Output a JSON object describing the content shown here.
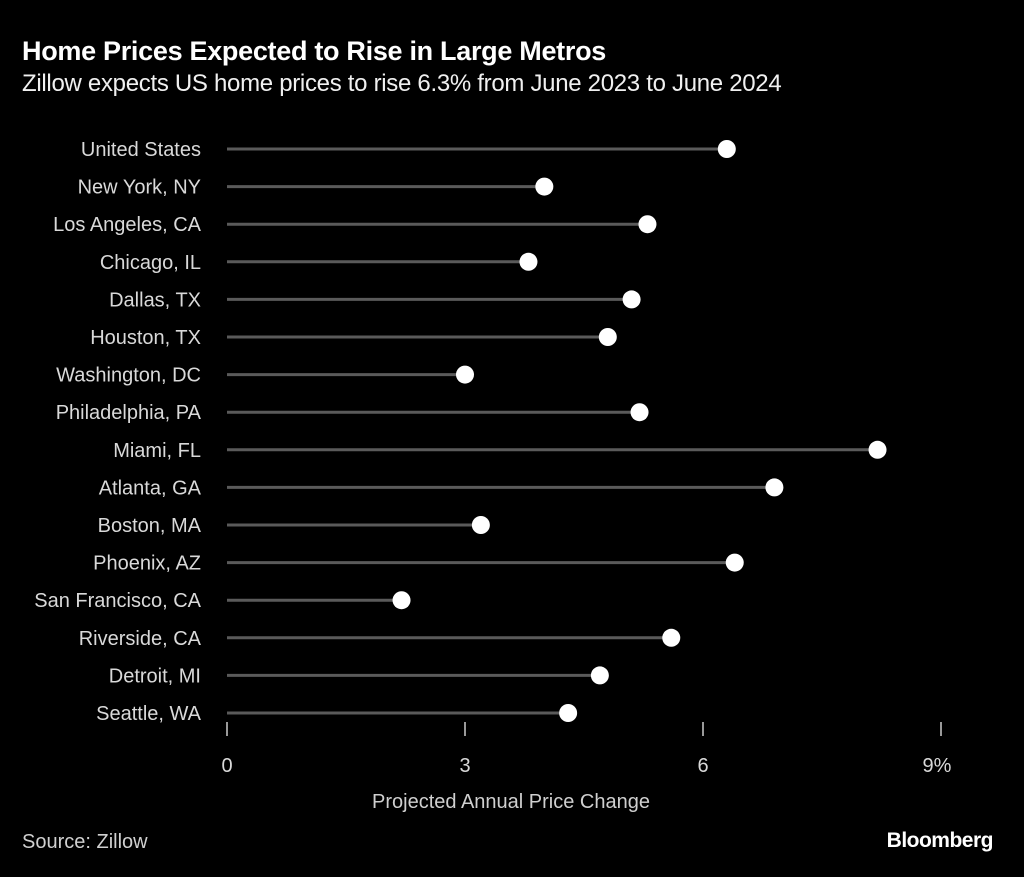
{
  "colors": {
    "background": "#000000",
    "stem": "#5a5a5a",
    "dot": "#ffffff",
    "text": "#d9d9d9"
  },
  "chart_data": {
    "type": "lollipop",
    "title": "Home Prices Expected to Rise in Large Metros",
    "subtitle": "Zillow expects US home prices to rise 6.3% from June 2023 to June 2024",
    "xlabel": "Projected Annual Price Change",
    "ylabel": "",
    "xlim": [
      0,
      9
    ],
    "x_ticks": [
      0,
      3,
      6,
      9
    ],
    "x_tick_labels": [
      "0",
      "3",
      "6",
      "9%"
    ],
    "grid": false,
    "categories": [
      "United States",
      "New York, NY",
      "Los Angeles, CA",
      "Chicago, IL",
      "Dallas, TX",
      "Houston, TX",
      "Washington, DC",
      "Philadelphia, PA",
      "Miami, FL",
      "Atlanta, GA",
      "Boston, MA",
      "Phoenix, AZ",
      "San Francisco, CA",
      "Riverside, CA",
      "Detroit, MI",
      "Seattle, WA"
    ],
    "values": [
      6.3,
      4.0,
      5.3,
      3.8,
      5.1,
      4.8,
      3.0,
      5.2,
      8.2,
      6.9,
      3.2,
      6.4,
      2.2,
      5.6,
      4.7,
      4.3
    ],
    "unit": "%"
  },
  "footer": {
    "source": "Source: Zillow",
    "brand": "Bloomberg"
  }
}
